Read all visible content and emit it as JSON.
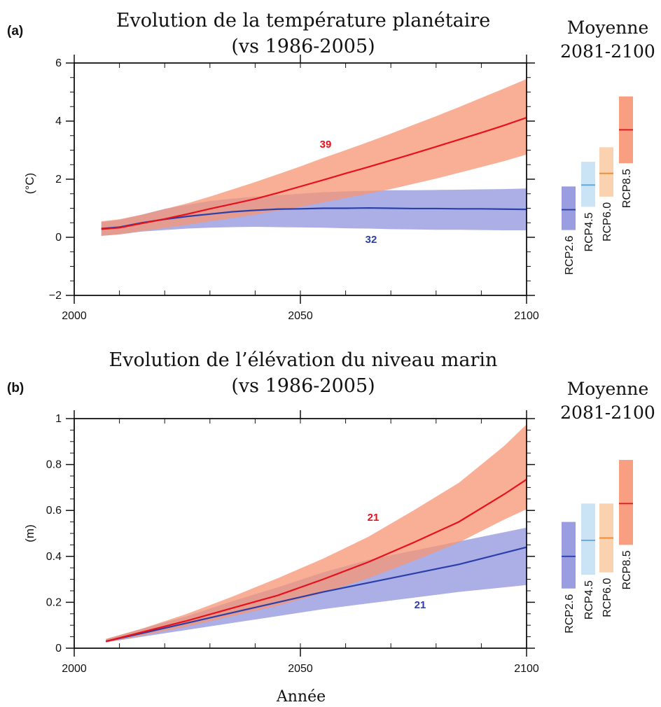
{
  "colors": {
    "rcp26_line": "#2b3fa8",
    "rcp26_band": "#8f94dd",
    "rcp85_line": "#e8101a",
    "rcp85_band": "#f79473",
    "rcp45_line": "#5aa7dc",
    "rcp45_band": "#c4e0f4",
    "rcp60_line": "#f08a2c",
    "rcp60_band": "#fbcda6"
  },
  "chart_data": [
    {
      "type": "line",
      "panel_label": "(a)",
      "title": "Evolution de la température planétaire",
      "subtitle": "(vs 1986-2005)",
      "xlabel": "",
      "ylabel": "(°C)",
      "xlim": [
        2000,
        2100
      ],
      "ylim": [
        -2,
        6
      ],
      "xticks": [
        "2000",
        "2050",
        "2100"
      ],
      "yticks": [
        "−2",
        "0",
        "2",
        "4",
        "6"
      ],
      "series": [
        {
          "name": "RCP2.6",
          "count_label": "32",
          "x": [
            2006,
            2010,
            2015,
            2020,
            2025,
            2030,
            2035,
            2040,
            2045,
            2050,
            2055,
            2060,
            2065,
            2070,
            2075,
            2080,
            2085,
            2090,
            2095,
            2100
          ],
          "mean": [
            0.3,
            0.35,
            0.5,
            0.62,
            0.72,
            0.8,
            0.88,
            0.93,
            0.97,
            0.98,
            1.0,
            1.0,
            1.01,
            1.0,
            0.99,
            0.99,
            0.98,
            0.98,
            0.97,
            0.96
          ],
          "low": [
            0.05,
            0.1,
            0.2,
            0.25,
            0.3,
            0.33,
            0.35,
            0.36,
            0.35,
            0.34,
            0.33,
            0.31,
            0.3,
            0.28,
            0.27,
            0.26,
            0.26,
            0.25,
            0.24,
            0.24
          ],
          "high": [
            0.52,
            0.6,
            0.78,
            0.98,
            1.12,
            1.25,
            1.33,
            1.4,
            1.45,
            1.5,
            1.55,
            1.58,
            1.6,
            1.62,
            1.62,
            1.63,
            1.64,
            1.65,
            1.66,
            1.68
          ]
        },
        {
          "name": "RCP8.5",
          "count_label": "39",
          "x": [
            2006,
            2010,
            2015,
            2020,
            2025,
            2030,
            2035,
            2040,
            2045,
            2050,
            2055,
            2060,
            2065,
            2070,
            2075,
            2080,
            2085,
            2090,
            2095,
            2100
          ],
          "mean": [
            0.28,
            0.33,
            0.48,
            0.63,
            0.8,
            0.98,
            1.15,
            1.32,
            1.53,
            1.75,
            1.97,
            2.2,
            2.42,
            2.65,
            2.88,
            3.12,
            3.36,
            3.6,
            3.85,
            4.12
          ],
          "low": [
            0.05,
            0.1,
            0.22,
            0.32,
            0.43,
            0.55,
            0.66,
            0.78,
            0.92,
            1.05,
            1.2,
            1.35,
            1.5,
            1.66,
            1.84,
            2.02,
            2.22,
            2.42,
            2.62,
            2.85
          ],
          "high": [
            0.55,
            0.62,
            0.78,
            0.97,
            1.17,
            1.4,
            1.65,
            1.9,
            2.17,
            2.44,
            2.73,
            3.0,
            3.28,
            3.57,
            3.87,
            4.17,
            4.48,
            4.8,
            5.12,
            5.45
          ]
        }
      ],
      "side_panel": {
        "title_line1": "Moyenne",
        "title_line2": "2081-2100",
        "bars": [
          {
            "name": "RCP2.6",
            "low": 0.25,
            "mean": 0.95,
            "high": 1.75
          },
          {
            "name": "RCP4.5",
            "low": 1.05,
            "mean": 1.8,
            "high": 2.6
          },
          {
            "name": "RCP6.0",
            "low": 1.4,
            "mean": 2.2,
            "high": 3.1
          },
          {
            "name": "RCP8.5",
            "low": 2.55,
            "mean": 3.7,
            "high": 4.85
          }
        ]
      }
    },
    {
      "type": "line",
      "panel_label": "(b)",
      "title": "Evolution de l’élévation du niveau marin",
      "subtitle": "(vs 1986-2005)",
      "xlabel": "Année",
      "ylabel": "(m)",
      "xlim": [
        2000,
        2100
      ],
      "ylim": [
        0,
        1
      ],
      "xticks": [
        "2000",
        "2050",
        "2100"
      ],
      "yticks": [
        "0",
        "0.2",
        "0.4",
        "0.6",
        "0.8",
        "1"
      ],
      "series": [
        {
          "name": "RCP2.6",
          "count_label": "21",
          "x": [
            2007,
            2015,
            2025,
            2035,
            2045,
            2055,
            2065,
            2075,
            2085,
            2095,
            2100
          ],
          "mean": [
            0.03,
            0.065,
            0.11,
            0.155,
            0.2,
            0.245,
            0.285,
            0.325,
            0.365,
            0.415,
            0.44
          ],
          "low": [
            0.025,
            0.05,
            0.08,
            0.11,
            0.14,
            0.17,
            0.195,
            0.22,
            0.245,
            0.265,
            0.275
          ],
          "high": [
            0.04,
            0.085,
            0.14,
            0.205,
            0.265,
            0.33,
            0.385,
            0.425,
            0.465,
            0.505,
            0.525
          ]
        },
        {
          "name": "RCP8.5",
          "count_label": "21",
          "x": [
            2007,
            2015,
            2025,
            2035,
            2045,
            2055,
            2065,
            2075,
            2085,
            2095,
            2100
          ],
          "mean": [
            0.03,
            0.07,
            0.12,
            0.175,
            0.23,
            0.3,
            0.375,
            0.46,
            0.55,
            0.67,
            0.735
          ],
          "low": [
            0.025,
            0.055,
            0.095,
            0.14,
            0.185,
            0.24,
            0.305,
            0.38,
            0.46,
            0.56,
            0.605
          ],
          "high": [
            0.04,
            0.085,
            0.15,
            0.225,
            0.305,
            0.39,
            0.485,
            0.6,
            0.72,
            0.88,
            0.975
          ]
        }
      ],
      "side_panel": {
        "title_line1": "Moyenne",
        "title_line2": "2081-2100",
        "bars": [
          {
            "name": "RCP2.6",
            "low": 0.26,
            "mean": 0.4,
            "high": 0.55
          },
          {
            "name": "RCP4.5",
            "low": 0.32,
            "mean": 0.47,
            "high": 0.63
          },
          {
            "name": "RCP6.0",
            "low": 0.33,
            "mean": 0.48,
            "high": 0.63
          },
          {
            "name": "RCP8.5",
            "low": 0.45,
            "mean": 0.63,
            "high": 0.82
          }
        ]
      }
    }
  ]
}
